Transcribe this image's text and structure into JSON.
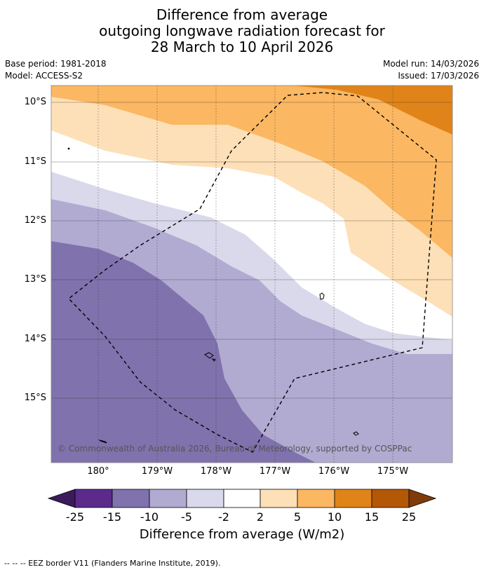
{
  "header": {
    "title_line1": "Difference from average",
    "title_line2": "outgoing longwave radiation forecast for",
    "title_line3": "28 March to 10 April 2026",
    "base_period": "Base period: 1981-2018",
    "model": "Model: ACCESS-S2",
    "model_run": "Model run: 14/03/2026",
    "issued": "Issued: 17/03/2026"
  },
  "map": {
    "lat_labels": [
      "10°S",
      "11°S",
      "12°S",
      "13°S",
      "14°S",
      "15°S"
    ],
    "lon_labels": [
      "180°",
      "179°W",
      "178°W",
      "177°W",
      "176°W",
      "175°W"
    ],
    "copyright": "© Commonwealth of Australia 2026, Bureau of Meteorology, supported by COSPPac",
    "colors": {
      "m25": "#3c1a5c",
      "m15_25": "#5b2a8a",
      "m10_15": "#7f72ad",
      "m5_10": "#b1abd2",
      "m2_5": "#d9d9eb",
      "neutral": "#ffffff",
      "p2_5": "#fde0b7",
      "p5_10": "#fbb762",
      "p10_15": "#e08419",
      "p15_25": "#b35806",
      "p25": "#7f3b08"
    }
  },
  "colorbar": {
    "ticks": [
      "-25",
      "-15",
      "-10",
      "-5",
      "-2",
      "2",
      "5",
      "10",
      "15",
      "25"
    ],
    "title": "Difference from average (W/m2)"
  },
  "footnote": "--  --  -- EEZ border V11 (Flanders Marine Institute, 2019)."
}
